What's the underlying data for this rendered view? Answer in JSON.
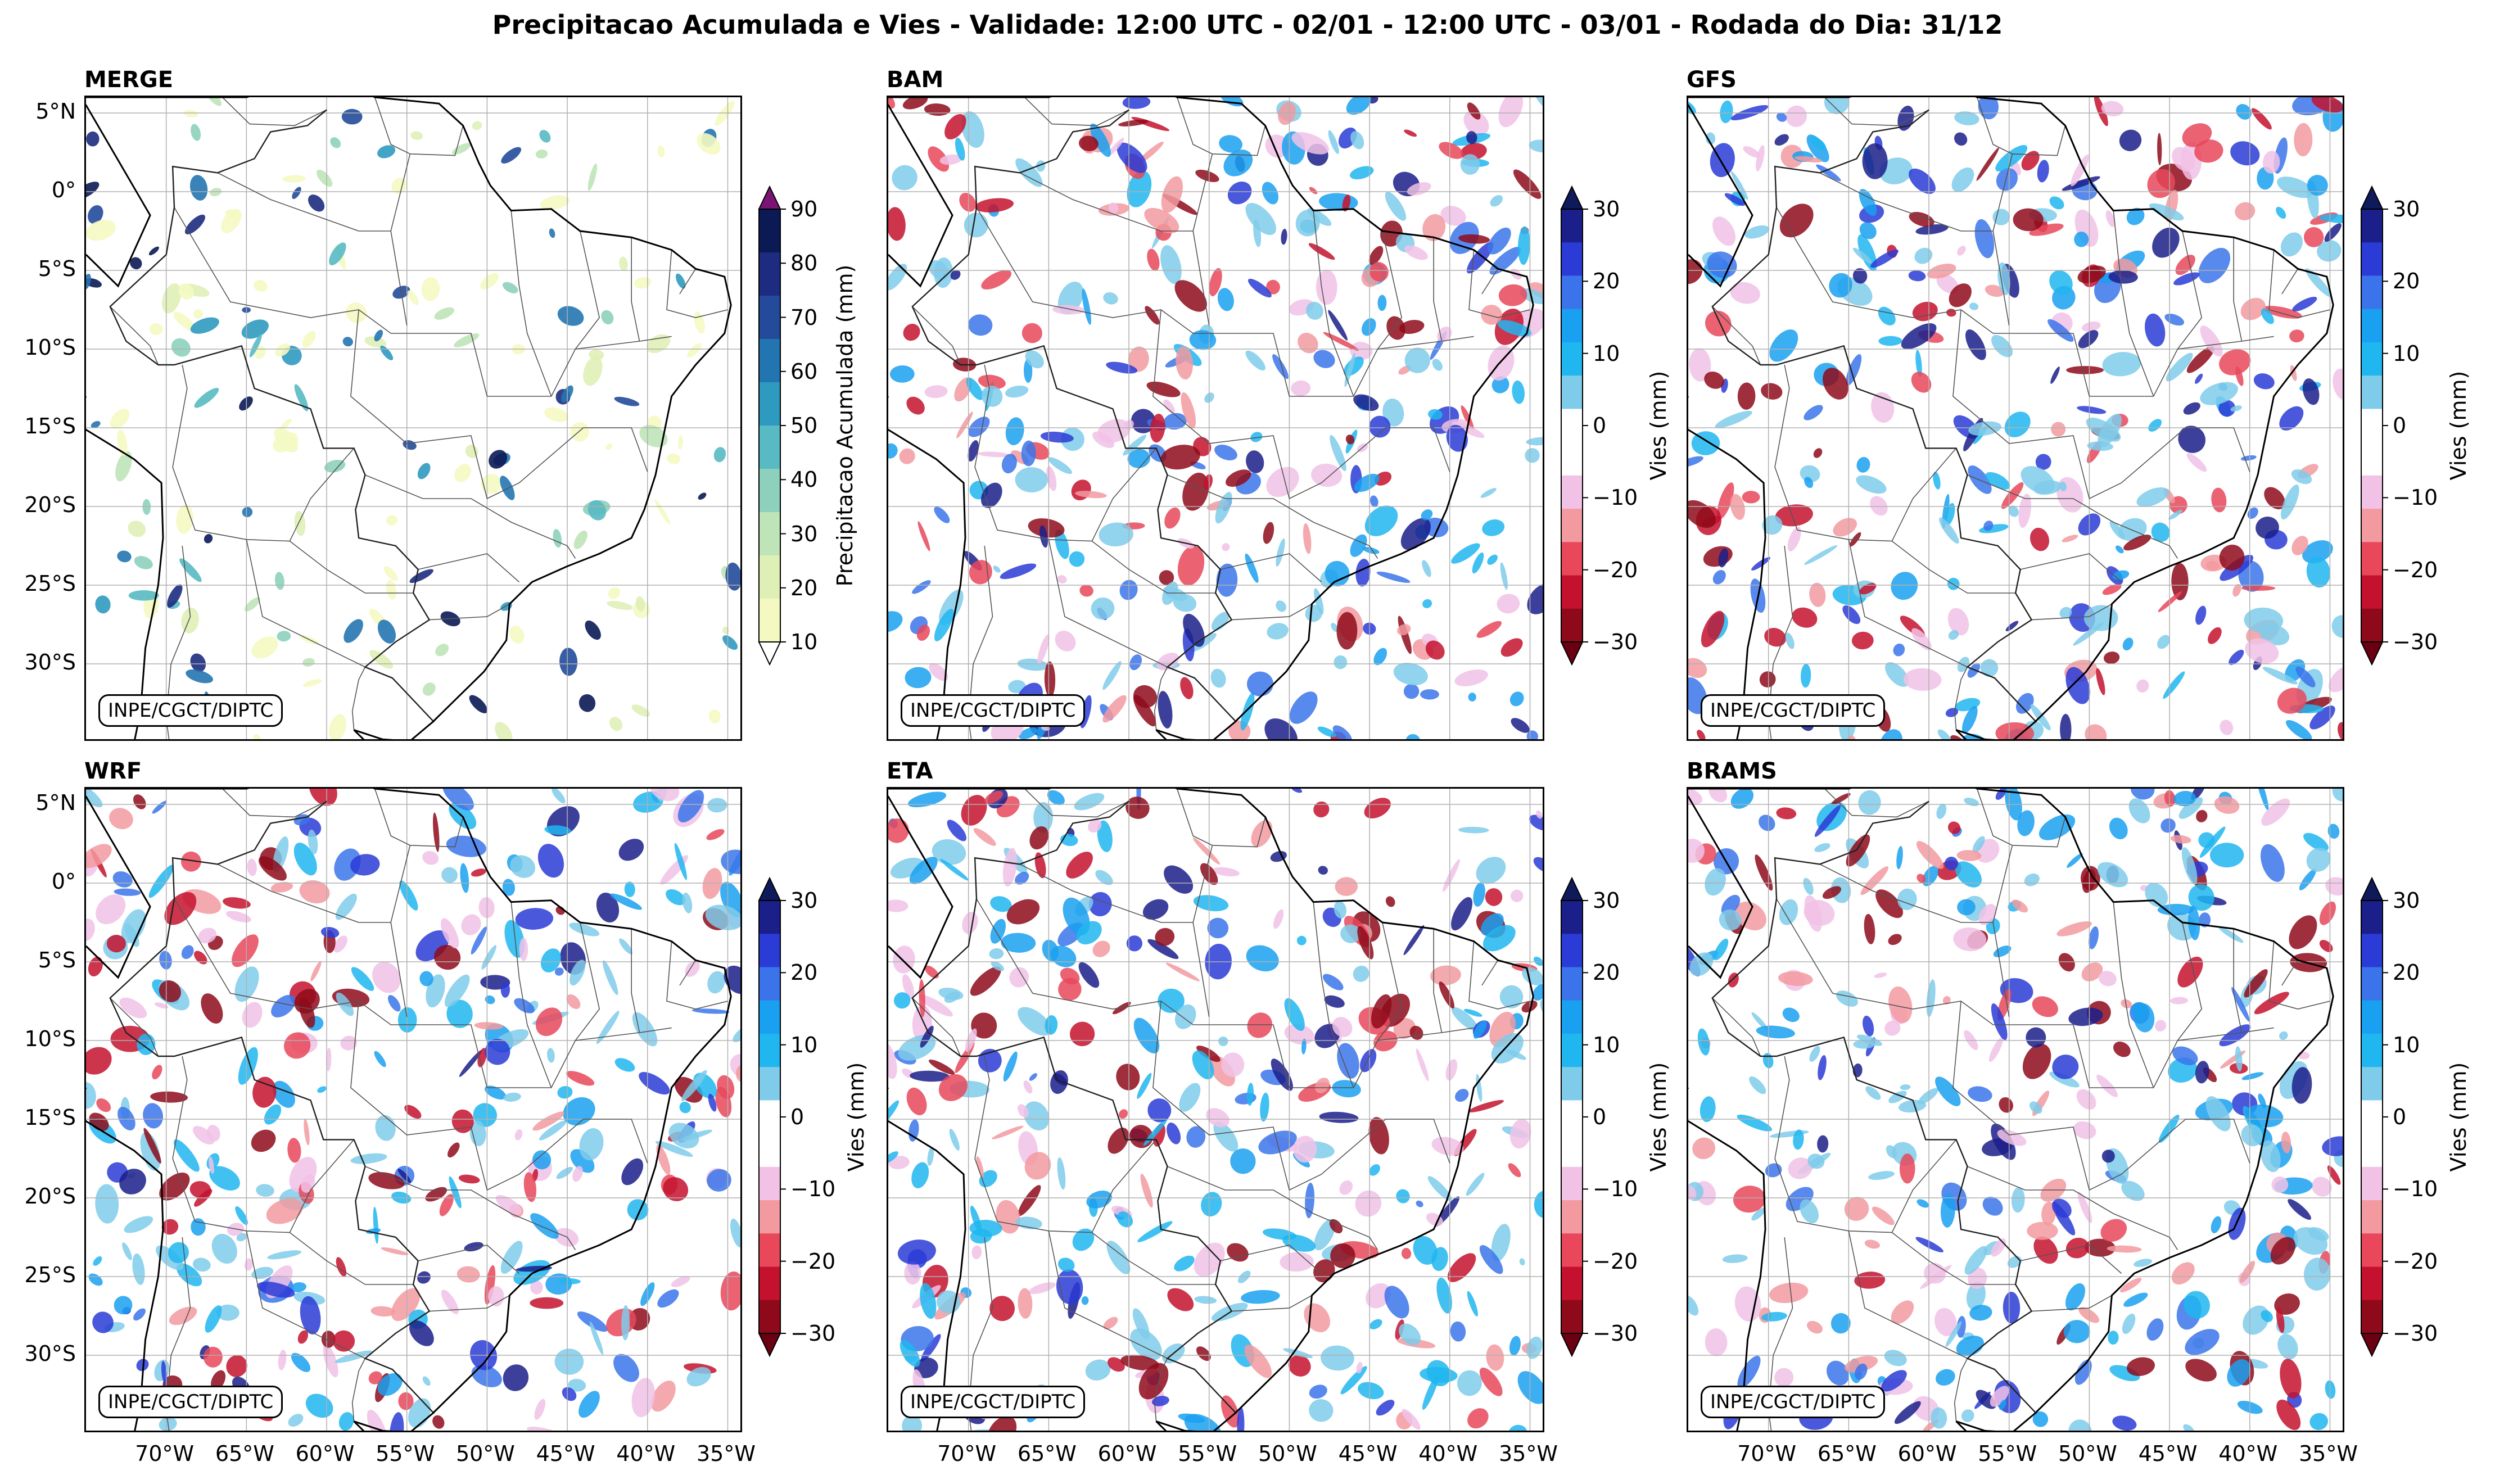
{
  "title": "Precipitacao Acumulada e Vies - Validade: 12:00 UTC - 02/01 - 12:00 UTC - 03/01 - Rodada do Dia: 31/12",
  "credit": "INPE/CGCT/DIPTC",
  "lat_ticks": [
    "5°N",
    "0°",
    "5°S",
    "10°S",
    "15°S",
    "20°S",
    "25°S",
    "30°S"
  ],
  "lon_ticks": [
    "70°W",
    "65°W",
    "60°W",
    "55°W",
    "50°W",
    "45°W",
    "40°W",
    "35°W"
  ],
  "panels": [
    {
      "name": "MERGE",
      "kind": "precip"
    },
    {
      "name": "BAM",
      "kind": "bias"
    },
    {
      "name": "GFS",
      "kind": "bias"
    },
    {
      "name": "WRF",
      "kind": "bias"
    },
    {
      "name": "ETA",
      "kind": "bias"
    },
    {
      "name": "BRAMS",
      "kind": "bias"
    }
  ],
  "colorbars": {
    "precip": {
      "label": "Precipitacao Acumulada (mm)",
      "ticks": [
        "10",
        "20",
        "30",
        "40",
        "50",
        "60",
        "70",
        "80",
        "90"
      ],
      "colors": [
        "#f4f9c2",
        "#dff0b6",
        "#bfe4b8",
        "#8dd1bd",
        "#58bac3",
        "#2f9ac0",
        "#2375b1",
        "#244b9b",
        "#1d2c80",
        "#0b1a55"
      ],
      "over": "#7a1574",
      "under": "#ffffff"
    },
    "bias": {
      "label": "Vies (mm)",
      "ticks": [
        "30",
        "20",
        "10",
        "0",
        "−10",
        "−20",
        "−30"
      ],
      "colors": [
        "#1b1f8a",
        "#2a3bd6",
        "#3b74ea",
        "#1aa0f0",
        "#20b6f0",
        "#7fcbea",
        "#ffffff",
        "#ffffff",
        "#f1c2e6",
        "#f29aa0",
        "#e8485a",
        "#c4122e",
        "#8e0a1a"
      ],
      "over": "#0e1a5a",
      "under": "#6a0012"
    }
  }
}
